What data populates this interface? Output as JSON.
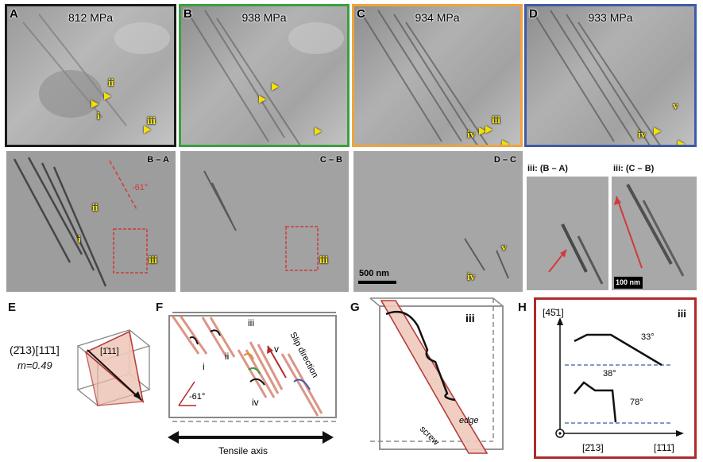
{
  "colors": {
    "A": "#1a1a1a",
    "B": "#3aa040",
    "C": "#f2a33a",
    "D": "#3e5ba8",
    "red": "#b02a2a",
    "slip": "#e6b0a0"
  },
  "top": [
    {
      "letter": "A",
      "stress": "812 MPa"
    },
    {
      "letter": "B",
      "stress": "938 MPa"
    },
    {
      "letter": "C",
      "stress": "934 MPa"
    },
    {
      "letter": "D",
      "stress": "933 MPa"
    }
  ],
  "mid": {
    "ba": "B – A",
    "cb": "C – B",
    "dc": "D – C",
    "angle": "-61°",
    "scale_500": "500 nm",
    "iii_ba": "iii: (B – A)",
    "iii_cb": "iii: (C – B)",
    "scale_100": "100 nm"
  },
  "labels": {
    "i": "i",
    "ii": "ii",
    "iii": "iii",
    "iv": "iv",
    "v": "v"
  },
  "E": {
    "letter": "E",
    "plane": "(2̄13)[11̄1]",
    "m": "m=0.49",
    "normal": "[1̄11]"
  },
  "F": {
    "letter": "F",
    "slip": "Slip direction",
    "angle": "-61°",
    "tensile": "Tensile axis"
  },
  "G": {
    "letter": "G",
    "iii": "iii",
    "screw": "screw",
    "edge": "edge"
  },
  "H": {
    "letter": "H",
    "iii": "iii",
    "y": "[45̄1]",
    "x1": "[2̄13]",
    "x2": "[1̄11̄]",
    "a1": "33°",
    "a2": "38°",
    "a3": "78°"
  }
}
